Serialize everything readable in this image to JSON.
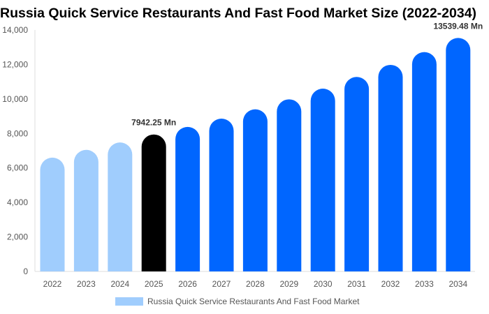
{
  "chart_data": {
    "type": "bar",
    "title": "Russia Quick Service Restaurants And Fast Food Market Size (2022-2034)",
    "categories": [
      "2022",
      "2023",
      "2024",
      "2025",
      "2026",
      "2027",
      "2028",
      "2029",
      "2030",
      "2031",
      "2032",
      "2033",
      "2034"
    ],
    "series": [
      {
        "name": "Russia Quick Service Restaurants And Fast Food Market",
        "values": [
          6600,
          7050,
          7480,
          7942.25,
          8380,
          8860,
          9400,
          9980,
          10600,
          11280,
          11980,
          12720,
          13539.48
        ]
      }
    ],
    "data_labels": [
      {
        "category": "2025",
        "text": "7942.25 Mn"
      },
      {
        "category": "2034",
        "text": "13539.48 Mn"
      }
    ],
    "ylim": [
      0,
      14000
    ],
    "yticks": [
      "0",
      "2,000",
      "4,000",
      "6,000",
      "8,000",
      "10,000",
      "12,000",
      "14,000"
    ],
    "legend_position": "bottom",
    "grid": false,
    "colors": {
      "historical": "#a0cdfd",
      "current": "#000000",
      "forecast": "#0066ff"
    }
  }
}
